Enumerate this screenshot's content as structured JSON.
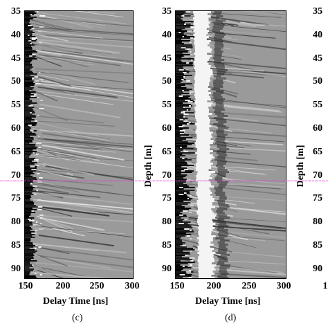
{
  "panels": [
    {
      "caption": "(c)",
      "xlabel": "Delay Time [ns]",
      "ylabel": "",
      "y_ticks": [
        "35",
        "40",
        "45",
        "50",
        "55",
        "60",
        "65",
        "70",
        "75",
        "80",
        "85",
        "90"
      ],
      "x_ticks": [
        "150",
        "200",
        "250",
        "300"
      ]
    },
    {
      "caption": "(d)",
      "xlabel": "Delay Time [ns]",
      "ylabel": "Depth [m]",
      "y_ticks": [
        "35",
        "40",
        "45",
        "50",
        "55",
        "60",
        "65",
        "70",
        "75",
        "80",
        "85",
        "90"
      ],
      "x_ticks": [
        "150",
        "200",
        "250",
        "300"
      ]
    },
    {
      "caption": "",
      "xlabel": "",
      "ylabel": "Depth [m]",
      "y_ticks": [
        "35",
        "40",
        "45",
        "50",
        "55",
        "60",
        "65",
        "70",
        "75",
        "80",
        "85",
        "90"
      ],
      "x_ticks": [
        "1"
      ]
    }
  ],
  "colors": {
    "reference_line": "#e03ad0"
  }
}
